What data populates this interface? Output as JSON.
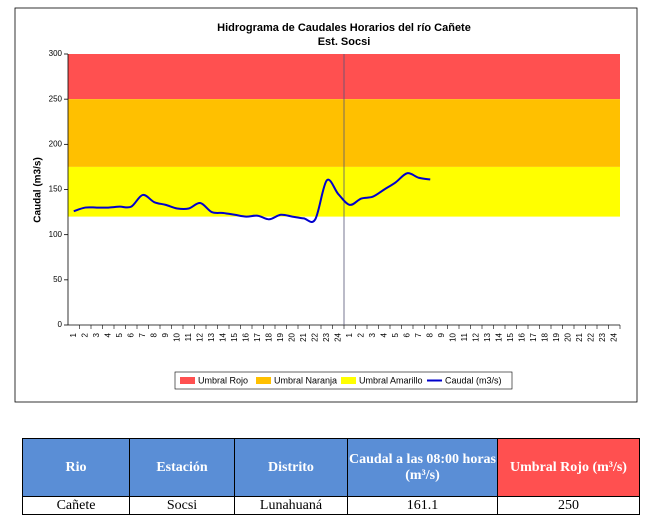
{
  "chart_data": {
    "type": "line",
    "title": "Hidrograma de Caudales Horarios del río Cañete",
    "subtitle": "Est. Socsi",
    "y_label": "Caudal (m3/s)",
    "categories": [
      1,
      2,
      3,
      4,
      5,
      6,
      7,
      8,
      9,
      10,
      11,
      12,
      13,
      14,
      15,
      16,
      17,
      18,
      19,
      20,
      21,
      22,
      23,
      24,
      1,
      2,
      3,
      4,
      5,
      6,
      7,
      8,
      9,
      10,
      11,
      12,
      13,
      14,
      15,
      16,
      17,
      18,
      19,
      20,
      21,
      22,
      23,
      24
    ],
    "bands": [
      {
        "name": "Umbral Rojo",
        "color": "#ff5050",
        "from": 250,
        "to": 300
      },
      {
        "name": "Umbral Naranja",
        "color": "#ffc000",
        "from": 175,
        "to": 250
      },
      {
        "name": "Umbral Amarillo",
        "color": "#ffff00",
        "from": 120,
        "to": 175
      }
    ],
    "series": [
      {
        "name": "Caudal (m3/s)",
        "color": "#0000cc",
        "values": [
          126,
          130,
          130,
          130,
          131,
          131,
          144,
          136,
          133,
          129,
          129,
          135,
          125,
          124,
          122,
          120,
          121,
          117,
          122,
          120,
          118,
          117,
          160,
          145,
          133,
          140,
          142,
          150,
          158,
          168,
          163,
          161.1,
          null,
          null,
          null,
          null,
          null,
          null,
          null,
          null,
          null,
          null,
          null,
          null,
          null,
          null,
          null,
          null
        ]
      }
    ],
    "ylim": [
      0,
      300
    ],
    "yticks": [
      0,
      50,
      100,
      150,
      200,
      250,
      300
    ]
  },
  "table": {
    "header": [
      "Rio",
      "Estación",
      "Distrito",
      "Caudal a las 08:00 horas (m³/s)",
      "Umbral Rojo (m³/s)"
    ],
    "rows": [
      [
        "Cañete",
        "Socsi",
        "Lunahuaná",
        "161.1",
        "250"
      ]
    ]
  }
}
